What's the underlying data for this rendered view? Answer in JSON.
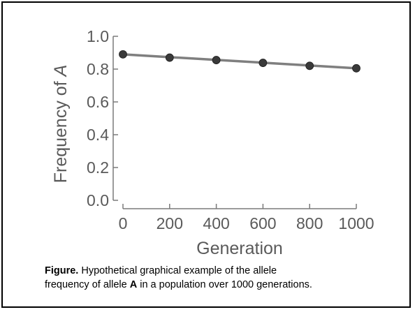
{
  "chart_data": {
    "type": "line",
    "title": "",
    "xlabel": "Generation",
    "ylabel": "Frequency of A",
    "x_ticks": [
      "0",
      "200",
      "400",
      "600",
      "800",
      "1000"
    ],
    "y_ticks": [
      "0.0",
      "0.2",
      "0.4",
      "0.6",
      "0.8",
      "1.0"
    ],
    "xlim": [
      0,
      1000
    ],
    "ylim": [
      0,
      1.0
    ],
    "grid": false,
    "series": [
      {
        "x": [
          0,
          200,
          400,
          600,
          800,
          1000
        ],
        "y": [
          0.89,
          0.87,
          0.855,
          0.838,
          0.82,
          0.805
        ]
      }
    ],
    "trend_line": {
      "x": [
        0,
        1000
      ],
      "y": [
        0.89,
        0.805
      ]
    }
  },
  "caption": {
    "label": "Figure.",
    "text1": " Hypothetical graphical example of the allele",
    "text2": "frequency of  allele ",
    "allele": "A",
    "text3": " in a population over 1000 generations."
  },
  "colors": {
    "axis": "#7a7a7a",
    "trend": "#7f7f7f",
    "point": "#3a3a3a",
    "text": "#5a5a5a"
  }
}
